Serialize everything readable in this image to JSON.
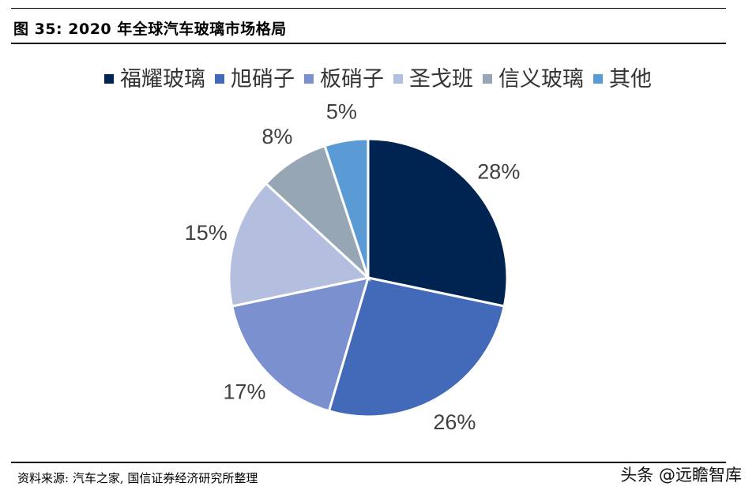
{
  "figure_title": "图 35:  2020 年全球汽车玻璃市场格局",
  "source_note": "资料来源: 汽车之家, 国信证券经济研究所整理",
  "watermark": "头条 @远瞻智库",
  "chart_data": {
    "type": "pie",
    "title": "",
    "legend_position": "top",
    "slices": [
      {
        "label": "福耀玻璃",
        "value": 28,
        "value_label": "28%",
        "color": "#002452"
      },
      {
        "label": "旭硝子",
        "value": 26,
        "value_label": "26%",
        "color": "#426ab8"
      },
      {
        "label": "板硝子",
        "value": 17,
        "value_label": "17%",
        "color": "#7a90cf"
      },
      {
        "label": "圣戈班",
        "value": 15,
        "value_label": "15%",
        "color": "#b4bfe0"
      },
      {
        "label": "信义玻璃",
        "value": 8,
        "value_label": "8%",
        "color": "#96a6b5"
      },
      {
        "label": "其他",
        "value": 5,
        "value_label": "5%",
        "color": "#5b9bd5"
      }
    ]
  }
}
